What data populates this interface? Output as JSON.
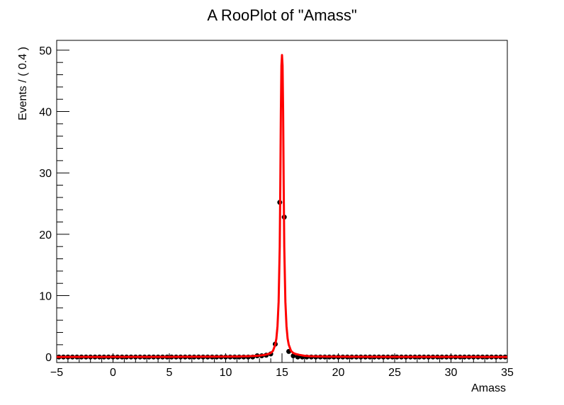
{
  "chart_data": {
    "type": "line",
    "title": "A RooPlot of \"Amass\"",
    "xlabel": "Amass",
    "ylabel": "Events / ( 0.4 )",
    "xlim": [
      -5,
      35
    ],
    "ylim": [
      -0.9,
      51.6
    ],
    "x_ticks": [
      -5,
      0,
      5,
      10,
      15,
      20,
      25,
      30,
      35
    ],
    "x_tick_labels": [
      "−5",
      "0",
      "5",
      "10",
      "15",
      "20",
      "25",
      "30",
      "35"
    ],
    "y_ticks": [
      0,
      10,
      20,
      30,
      40,
      50
    ],
    "y_tick_labels": [
      "0",
      "10",
      "20",
      "30",
      "40",
      "50"
    ],
    "grid": false,
    "legend": "none",
    "bin_width": 0.4,
    "series": [
      {
        "kind": "points",
        "color": "#000000",
        "x": [
          -4.8,
          -4.4,
          -4.0,
          -3.6,
          -3.2,
          -2.8,
          -2.4,
          -2.0,
          -1.6,
          -1.2,
          -0.8,
          -0.4,
          0.0,
          0.4,
          0.8,
          1.2,
          1.6,
          2.0,
          2.4,
          2.8,
          3.2,
          3.6,
          4.0,
          4.4,
          4.8,
          5.2,
          5.6,
          6.0,
          6.4,
          6.8,
          7.2,
          7.6,
          8.0,
          8.4,
          8.8,
          9.2,
          9.6,
          10.0,
          10.4,
          10.8,
          11.2,
          11.6,
          12.0,
          12.4,
          12.8,
          13.2,
          13.6,
          14.0,
          14.4,
          14.8,
          15.2,
          15.6,
          16.0,
          16.4,
          16.8,
          17.2,
          17.6,
          18.0,
          18.4,
          18.8,
          19.2,
          19.6,
          20.0,
          20.4,
          20.8,
          21.2,
          21.6,
          22.0,
          22.4,
          22.8,
          23.2,
          23.6,
          24.0,
          24.4,
          24.8,
          25.2,
          25.6,
          26.0,
          26.4,
          26.8,
          27.2,
          27.6,
          28.0,
          28.4,
          28.8,
          29.2,
          29.6,
          30.0,
          30.4,
          30.8,
          31.2,
          31.6,
          32.0,
          32.4,
          32.8,
          33.2,
          33.6,
          34.0,
          34.4,
          34.8
        ],
        "y": [
          0,
          0,
          0,
          0,
          0,
          0,
          0,
          0,
          0,
          0,
          0,
          0,
          0,
          0,
          0,
          0,
          0,
          0,
          0,
          0,
          0,
          0,
          0,
          0,
          0,
          0,
          0,
          0,
          0,
          0,
          0,
          0,
          0,
          0,
          0,
          0,
          0,
          0,
          0,
          0,
          0,
          0,
          0,
          0,
          0.2,
          0.2,
          0.3,
          0.5,
          2.1,
          25.2,
          22.8,
          0.9,
          0.2,
          0,
          0,
          0,
          0,
          0,
          0,
          0,
          0,
          0,
          0,
          0,
          0,
          0,
          0,
          0,
          0,
          0,
          0,
          0,
          0,
          0,
          0,
          0,
          0,
          0,
          0,
          0,
          0,
          0,
          0,
          0,
          0,
          0,
          0,
          0,
          0,
          0,
          0,
          0,
          0,
          0,
          0,
          0,
          0,
          0,
          0,
          0
        ]
      },
      {
        "kind": "line",
        "color": "#ff0000",
        "x": [
          -5,
          0,
          5,
          10,
          11,
          12,
          12.5,
          13,
          13.5,
          13.8,
          14.0,
          14.2,
          14.4,
          14.5,
          14.6,
          14.7,
          14.8,
          14.85,
          14.9,
          14.95,
          15.0,
          15.05,
          15.1,
          15.15,
          15.2,
          15.3,
          15.4,
          15.5,
          15.6,
          15.8,
          16.0,
          16.2,
          16.5,
          17,
          17.5,
          18,
          19,
          20,
          25,
          30,
          35
        ],
        "y": [
          0.01,
          0.02,
          0.03,
          0.06,
          0.08,
          0.12,
          0.16,
          0.22,
          0.36,
          0.5,
          0.65,
          1.0,
          2.0,
          3.0,
          5.0,
          9.0,
          18.0,
          28.0,
          40.0,
          47.5,
          49.2,
          47.5,
          40.0,
          28.0,
          18.0,
          9.0,
          5.0,
          3.0,
          2.0,
          1.0,
          0.65,
          0.5,
          0.36,
          0.2,
          0.13,
          0.1,
          0.07,
          0.05,
          0.03,
          0.02,
          0.01
        ]
      }
    ]
  }
}
